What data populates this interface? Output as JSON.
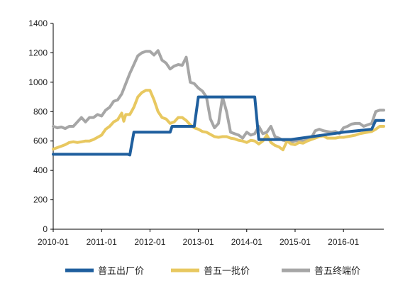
{
  "chart_data": {
    "type": "line",
    "ylim": [
      0,
      1400
    ],
    "yticks": [
      0,
      200,
      400,
      600,
      800,
      1000,
      1200,
      1400
    ],
    "xlim": [
      0,
      82
    ],
    "xticks": [
      {
        "label": "2010-01",
        "x": 0
      },
      {
        "label": "2011-01",
        "x": 12
      },
      {
        "label": "2012-01",
        "x": 24
      },
      {
        "label": "2013-01",
        "x": 36
      },
      {
        "label": "2014-01",
        "x": 48
      },
      {
        "label": "2015-01",
        "x": 60
      },
      {
        "label": "2016-01",
        "x": 72
      }
    ],
    "grid": false,
    "legend_position": "bottom",
    "series": [
      {
        "name": "普五出厂价",
        "color": "#1f5f9e",
        "points": [
          [
            0,
            510
          ],
          [
            18.5,
            510
          ],
          [
            19,
            505
          ],
          [
            20,
            660
          ],
          [
            29,
            660
          ],
          [
            29.5,
            700
          ],
          [
            35,
            700
          ],
          [
            36,
            900
          ],
          [
            50,
            900
          ],
          [
            51,
            610
          ],
          [
            59,
            610
          ],
          [
            72,
            660
          ],
          [
            79,
            680
          ],
          [
            80,
            740
          ],
          [
            82,
            740
          ]
        ]
      },
      {
        "name": "普五一批价",
        "color": "#e8c860",
        "points": [
          [
            0,
            545
          ],
          [
            1,
            555
          ],
          [
            2,
            565
          ],
          [
            3,
            575
          ],
          [
            4,
            590
          ],
          [
            5,
            595
          ],
          [
            6,
            590
          ],
          [
            7,
            595
          ],
          [
            8,
            600
          ],
          [
            9,
            600
          ],
          [
            10,
            610
          ],
          [
            11,
            625
          ],
          [
            12,
            640
          ],
          [
            13,
            680
          ],
          [
            14,
            700
          ],
          [
            15,
            730
          ],
          [
            16,
            745
          ],
          [
            17,
            790
          ],
          [
            17.5,
            735
          ],
          [
            18,
            780
          ],
          [
            19,
            780
          ],
          [
            20,
            830
          ],
          [
            21,
            900
          ],
          [
            22,
            930
          ],
          [
            23,
            945
          ],
          [
            24,
            945
          ],
          [
            25,
            880
          ],
          [
            26,
            800
          ],
          [
            27,
            760
          ],
          [
            28,
            750
          ],
          [
            29,
            720
          ],
          [
            30,
            730
          ],
          [
            31,
            760
          ],
          [
            32,
            760
          ],
          [
            33,
            740
          ],
          [
            34,
            710
          ],
          [
            35,
            690
          ],
          [
            36,
            680
          ],
          [
            37,
            665
          ],
          [
            38,
            660
          ],
          [
            39,
            645
          ],
          [
            40,
            630
          ],
          [
            41,
            625
          ],
          [
            42,
            630
          ],
          [
            43,
            630
          ],
          [
            44,
            620
          ],
          [
            45,
            615
          ],
          [
            46,
            605
          ],
          [
            47,
            600
          ],
          [
            48,
            590
          ],
          [
            49,
            605
          ],
          [
            50,
            600
          ],
          [
            51,
            580
          ],
          [
            52,
            600
          ],
          [
            53,
            640
          ],
          [
            54,
            590
          ],
          [
            55,
            570
          ],
          [
            56,
            560
          ],
          [
            57,
            540
          ],
          [
            58,
            600
          ],
          [
            59,
            580
          ],
          [
            60,
            575
          ],
          [
            61,
            590
          ],
          [
            62,
            585
          ],
          [
            63,
            600
          ],
          [
            64,
            610
          ],
          [
            65,
            620
          ],
          [
            66,
            630
          ],
          [
            67,
            635
          ],
          [
            68,
            620
          ],
          [
            69,
            620
          ],
          [
            70,
            620
          ],
          [
            71,
            625
          ],
          [
            72,
            625
          ],
          [
            73,
            630
          ],
          [
            74,
            635
          ],
          [
            75,
            640
          ],
          [
            76,
            650
          ],
          [
            77,
            655
          ],
          [
            78,
            660
          ],
          [
            79,
            665
          ],
          [
            80,
            680
          ],
          [
            81,
            700
          ],
          [
            82,
            700
          ]
        ]
      },
      {
        "name": "普五终端价",
        "color": "#a6a6a6",
        "points": [
          [
            0,
            700
          ],
          [
            1,
            690
          ],
          [
            2,
            695
          ],
          [
            3,
            685
          ],
          [
            4,
            700
          ],
          [
            5,
            700
          ],
          [
            6,
            730
          ],
          [
            7,
            760
          ],
          [
            8,
            730
          ],
          [
            9,
            760
          ],
          [
            10,
            760
          ],
          [
            11,
            780
          ],
          [
            12,
            770
          ],
          [
            13,
            810
          ],
          [
            14,
            830
          ],
          [
            15,
            870
          ],
          [
            16,
            880
          ],
          [
            17,
            920
          ],
          [
            18,
            990
          ],
          [
            19,
            1060
          ],
          [
            20,
            1120
          ],
          [
            21,
            1180
          ],
          [
            22,
            1200
          ],
          [
            23,
            1210
          ],
          [
            24,
            1210
          ],
          [
            25,
            1185
          ],
          [
            26,
            1215
          ],
          [
            27,
            1150
          ],
          [
            28,
            1130
          ],
          [
            29,
            1090
          ],
          [
            30,
            1110
          ],
          [
            31,
            1120
          ],
          [
            32,
            1115
          ],
          [
            33,
            1170
          ],
          [
            34,
            1000
          ],
          [
            35,
            990
          ],
          [
            36,
            960
          ],
          [
            37,
            940
          ],
          [
            38,
            900
          ],
          [
            39,
            750
          ],
          [
            40,
            690
          ],
          [
            41,
            720
          ],
          [
            42,
            900
          ],
          [
            43,
            800
          ],
          [
            44,
            660
          ],
          [
            45,
            650
          ],
          [
            46,
            640
          ],
          [
            47,
            620
          ],
          [
            48,
            660
          ],
          [
            49,
            640
          ],
          [
            50,
            650
          ],
          [
            51,
            700
          ],
          [
            52,
            650
          ],
          [
            53,
            660
          ],
          [
            54,
            700
          ],
          [
            55,
            630
          ],
          [
            56,
            620
          ],
          [
            57,
            605
          ],
          [
            58,
            600
          ],
          [
            59,
            595
          ],
          [
            60,
            600
          ],
          [
            61,
            605
          ],
          [
            62,
            600
          ],
          [
            63,
            610
          ],
          [
            64,
            620
          ],
          [
            65,
            670
          ],
          [
            66,
            680
          ],
          [
            67,
            670
          ],
          [
            68,
            665
          ],
          [
            69,
            660
          ],
          [
            70,
            665
          ],
          [
            71,
            650
          ],
          [
            72,
            690
          ],
          [
            73,
            700
          ],
          [
            74,
            715
          ],
          [
            75,
            720
          ],
          [
            76,
            720
          ],
          [
            77,
            700
          ],
          [
            78,
            710
          ],
          [
            79,
            720
          ],
          [
            80,
            800
          ],
          [
            81,
            810
          ],
          [
            82,
            810
          ]
        ]
      }
    ]
  }
}
